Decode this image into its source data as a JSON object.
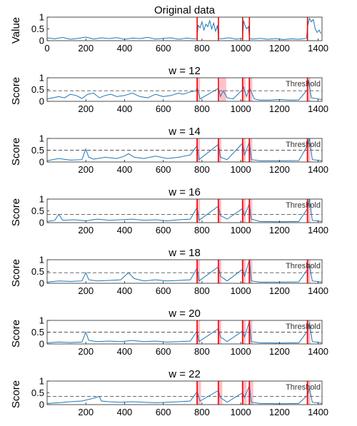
{
  "chart_data": [
    {
      "type": "line",
      "title": "Original data",
      "ylabel": "Value",
      "xlim": [
        0,
        1420
      ],
      "ylim": [
        0,
        1
      ],
      "xticks": [
        0,
        200,
        400,
        600,
        800,
        1000,
        1200,
        1400
      ],
      "yticks": [
        0,
        0.5,
        1
      ],
      "threshold": null,
      "change_lines": [
        775,
        885,
        1010,
        1045,
        1345
      ],
      "highlight_spans": [],
      "series": [
        {
          "x": [
            0,
            40,
            80,
            120,
            160,
            200,
            240,
            280,
            320,
            360,
            400,
            440,
            480,
            520,
            560,
            600,
            640,
            680,
            720,
            760,
            775,
            780,
            790,
            800,
            810,
            820,
            830,
            840,
            850,
            860,
            870,
            880,
            885,
            900,
            940,
            980,
            1000,
            1010,
            1015,
            1020,
            1030,
            1040,
            1045,
            1060,
            1100,
            1140,
            1180,
            1220,
            1260,
            1300,
            1340,
            1345,
            1355,
            1365,
            1375,
            1385,
            1395,
            1405,
            1415
          ],
          "y": [
            0.12,
            0.08,
            0.14,
            0.06,
            0.1,
            0.15,
            0.07,
            0.12,
            0.09,
            0.13,
            0.06,
            0.11,
            0.09,
            0.14,
            0.07,
            0.1,
            0.12,
            0.06,
            0.11,
            0.08,
            0.1,
            0.65,
            0.55,
            0.8,
            0.45,
            0.7,
            0.6,
            0.85,
            0.5,
            0.75,
            0.4,
            0.65,
            0.1,
            0.08,
            0.12,
            0.06,
            0.1,
            0.1,
            0.85,
            0.7,
            0.5,
            0.6,
            0.1,
            0.07,
            0.1,
            0.06,
            0.09,
            0.05,
            0.08,
            0.06,
            0.1,
            0.6,
            0.95,
            0.8,
            0.9,
            0.5,
            0.35,
            0.45,
            0.3
          ]
        }
      ]
    },
    {
      "type": "line",
      "title": "w = 12",
      "ylabel": "Score",
      "xlim": [
        0,
        1420
      ],
      "ylim": [
        0,
        1
      ],
      "xticks": [
        200,
        400,
        600,
        800,
        1000,
        1200,
        1400
      ],
      "yticks": [
        0,
        0.5,
        1
      ],
      "threshold": 0.45,
      "threshold_label": "Threshold",
      "change_lines": [
        775,
        885,
        1010,
        1045,
        1345
      ],
      "highlight_spans": [
        [
          770,
          790
        ],
        [
          890,
          925
        ],
        [
          1005,
          1025
        ],
        [
          1040,
          1060
        ],
        [
          1340,
          1360
        ]
      ],
      "series": [
        {
          "x": [
            0,
            60,
            90,
            120,
            150,
            180,
            210,
            240,
            270,
            300,
            330,
            360,
            400,
            440,
            480,
            520,
            560,
            600,
            640,
            680,
            700,
            740,
            770,
            775,
            790,
            885,
            895,
            910,
            930,
            960,
            1010,
            1015,
            1030,
            1045,
            1050,
            1070,
            1100,
            1150,
            1200,
            1250,
            1300,
            1345,
            1350,
            1365,
            1400,
            1420
          ],
          "y": [
            0.1,
            0.2,
            0.15,
            0.3,
            0.25,
            0.12,
            0.3,
            0.35,
            0.15,
            0.25,
            0.3,
            0.2,
            0.25,
            0.35,
            0.2,
            0.15,
            0.3,
            0.2,
            0.25,
            0.35,
            0.3,
            0.4,
            0.45,
            0.6,
            0.1,
            0.55,
            0.2,
            0.45,
            0.15,
            0.1,
            0.5,
            0.6,
            0.2,
            0.55,
            0.5,
            0.1,
            0.05,
            0.05,
            0.08,
            0.05,
            0.06,
            0.5,
            0.9,
            0.15,
            0.1,
            0.08
          ]
        }
      ]
    },
    {
      "type": "line",
      "title": "w = 14",
      "ylabel": "Score",
      "xlim": [
        0,
        1420
      ],
      "ylim": [
        0,
        1
      ],
      "xticks": [
        200,
        400,
        600,
        800,
        1000,
        1200,
        1400
      ],
      "yticks": [
        0,
        0.5,
        1
      ],
      "threshold": 0.5,
      "threshold_label": "Threshold",
      "change_lines": [
        775,
        885,
        1010,
        1045,
        1345
      ],
      "highlight_spans": [
        [
          770,
          790
        ],
        [
          880,
          900
        ],
        [
          1005,
          1025
        ],
        [
          1040,
          1060
        ],
        [
          1340,
          1360
        ]
      ],
      "series": [
        {
          "x": [
            0,
            60,
            120,
            180,
            200,
            215,
            240,
            300,
            360,
            400,
            420,
            450,
            500,
            560,
            620,
            680,
            740,
            775,
            785,
            885,
            895,
            930,
            1010,
            1020,
            1045,
            1055,
            1100,
            1200,
            1300,
            1345,
            1355,
            1370,
            1420
          ],
          "y": [
            0.05,
            0.15,
            0.08,
            0.1,
            0.55,
            0.2,
            0.12,
            0.2,
            0.15,
            0.25,
            0.35,
            0.2,
            0.15,
            0.25,
            0.15,
            0.2,
            0.3,
            0.7,
            0.1,
            0.75,
            0.2,
            0.1,
            0.8,
            0.3,
            0.85,
            0.1,
            0.05,
            0.05,
            0.06,
            0.7,
            1.0,
            0.1,
            0.05
          ]
        }
      ]
    },
    {
      "type": "line",
      "title": "w = 16",
      "ylabel": "Score",
      "xlim": [
        0,
        1420
      ],
      "ylim": [
        0,
        1
      ],
      "xticks": [
        200,
        400,
        600,
        800,
        1000,
        1200,
        1400
      ],
      "yticks": [
        0,
        0.5,
        1
      ],
      "threshold": 0.35,
      "threshold_label": "Threshold",
      "change_lines": [
        775,
        885,
        1010,
        1045,
        1345
      ],
      "highlight_spans": [
        [
          770,
          790
        ],
        [
          880,
          900
        ],
        [
          1005,
          1025
        ],
        [
          1040,
          1060
        ],
        [
          1340,
          1360
        ]
      ],
      "series": [
        {
          "x": [
            0,
            40,
            60,
            80,
            140,
            200,
            260,
            320,
            380,
            440,
            500,
            560,
            620,
            680,
            740,
            775,
            785,
            885,
            895,
            930,
            1010,
            1020,
            1045,
            1055,
            1100,
            1200,
            1300,
            1345,
            1355,
            1370,
            1420
          ],
          "y": [
            0.05,
            0.1,
            0.35,
            0.1,
            0.12,
            0.08,
            0.15,
            0.1,
            0.12,
            0.15,
            0.1,
            0.12,
            0.08,
            0.12,
            0.15,
            0.65,
            0.1,
            0.7,
            0.3,
            0.15,
            0.6,
            0.3,
            0.8,
            0.15,
            0.05,
            0.04,
            0.05,
            0.6,
            1.0,
            0.1,
            0.05
          ]
        }
      ]
    },
    {
      "type": "line",
      "title": "w = 18",
      "ylabel": "Score",
      "xlim": [
        0,
        1420
      ],
      "ylim": [
        0,
        1
      ],
      "xticks": [
        200,
        400,
        600,
        800,
        1000,
        1200,
        1400
      ],
      "yticks": [
        0,
        0.5,
        1
      ],
      "threshold": 0.45,
      "threshold_label": "Threshold",
      "change_lines": [
        775,
        885,
        1010,
        1045,
        1345
      ],
      "highlight_spans": [
        [
          770,
          790
        ],
        [
          880,
          900
        ],
        [
          1005,
          1025
        ],
        [
          1040,
          1060
        ],
        [
          1340,
          1360
        ]
      ],
      "series": [
        {
          "x": [
            0,
            60,
            120,
            180,
            200,
            215,
            260,
            320,
            380,
            400,
            420,
            450,
            500,
            560,
            620,
            680,
            740,
            775,
            785,
            885,
            895,
            930,
            1010,
            1020,
            1045,
            1055,
            1100,
            1200,
            1300,
            1345,
            1355,
            1370,
            1420
          ],
          "y": [
            0.05,
            0.1,
            0.08,
            0.1,
            0.45,
            0.15,
            0.1,
            0.12,
            0.15,
            0.3,
            0.45,
            0.2,
            0.1,
            0.15,
            0.1,
            0.12,
            0.15,
            0.65,
            0.1,
            0.7,
            0.3,
            0.1,
            0.6,
            0.3,
            1.0,
            0.1,
            0.05,
            0.05,
            0.06,
            0.6,
            0.8,
            0.1,
            0.05
          ]
        }
      ]
    },
    {
      "type": "line",
      "title": "w = 20",
      "ylabel": "Score",
      "xlim": [
        0,
        1420
      ],
      "ylim": [
        0,
        1
      ],
      "xticks": [
        200,
        400,
        600,
        800,
        1000,
        1200,
        1400
      ],
      "yticks": [
        0,
        0.5,
        1
      ],
      "threshold": 0.5,
      "threshold_label": "Threshold",
      "change_lines": [
        775,
        885,
        1010,
        1045,
        1345
      ],
      "highlight_spans": [
        [
          770,
          790
        ],
        [
          880,
          900
        ],
        [
          1005,
          1025
        ],
        [
          1040,
          1060
        ],
        [
          1340,
          1360
        ]
      ],
      "series": [
        {
          "x": [
            0,
            60,
            120,
            180,
            200,
            215,
            260,
            320,
            380,
            440,
            500,
            560,
            620,
            680,
            740,
            775,
            785,
            885,
            895,
            930,
            1010,
            1020,
            1045,
            1055,
            1100,
            1200,
            1300,
            1345,
            1355,
            1370,
            1420
          ],
          "y": [
            0.05,
            0.08,
            0.06,
            0.08,
            0.5,
            0.15,
            0.1,
            0.12,
            0.1,
            0.15,
            0.1,
            0.12,
            0.08,
            0.1,
            0.12,
            0.55,
            0.1,
            0.65,
            0.3,
            0.1,
            0.55,
            0.3,
            0.95,
            0.1,
            0.05,
            0.04,
            0.05,
            0.55,
            0.9,
            0.1,
            0.05
          ]
        }
      ]
    },
    {
      "type": "line",
      "title": "w = 22",
      "ylabel": "Score",
      "xlim": [
        0,
        1420
      ],
      "ylim": [
        0,
        1
      ],
      "xticks": [
        200,
        400,
        600,
        800,
        1000,
        1200,
        1400
      ],
      "yticks": [
        0,
        0.5,
        1
      ],
      "threshold": 0.35,
      "threshold_label": "Threshold",
      "change_lines": [
        775,
        885,
        1010,
        1045,
        1345
      ],
      "highlight_spans": [
        [
          770,
          795
        ],
        [
          880,
          905
        ],
        [
          1005,
          1030
        ],
        [
          1040,
          1065
        ],
        [
          1340,
          1360
        ]
      ],
      "series": [
        {
          "x": [
            0,
            60,
            120,
            180,
            230,
            250,
            270,
            280,
            320,
            380,
            440,
            500,
            560,
            620,
            680,
            740,
            775,
            790,
            885,
            895,
            930,
            1010,
            1020,
            1045,
            1055,
            1100,
            1200,
            1300,
            1345,
            1355,
            1370,
            1420
          ],
          "y": [
            0.05,
            0.08,
            0.12,
            0.15,
            0.25,
            0.3,
            0.35,
            0.15,
            0.12,
            0.1,
            0.12,
            0.1,
            0.08,
            0.1,
            0.12,
            0.15,
            0.55,
            0.15,
            0.6,
            0.3,
            0.1,
            0.5,
            0.3,
            0.8,
            0.1,
            0.05,
            0.04,
            0.05,
            0.4,
            0.7,
            0.1,
            0.05
          ]
        }
      ]
    }
  ]
}
